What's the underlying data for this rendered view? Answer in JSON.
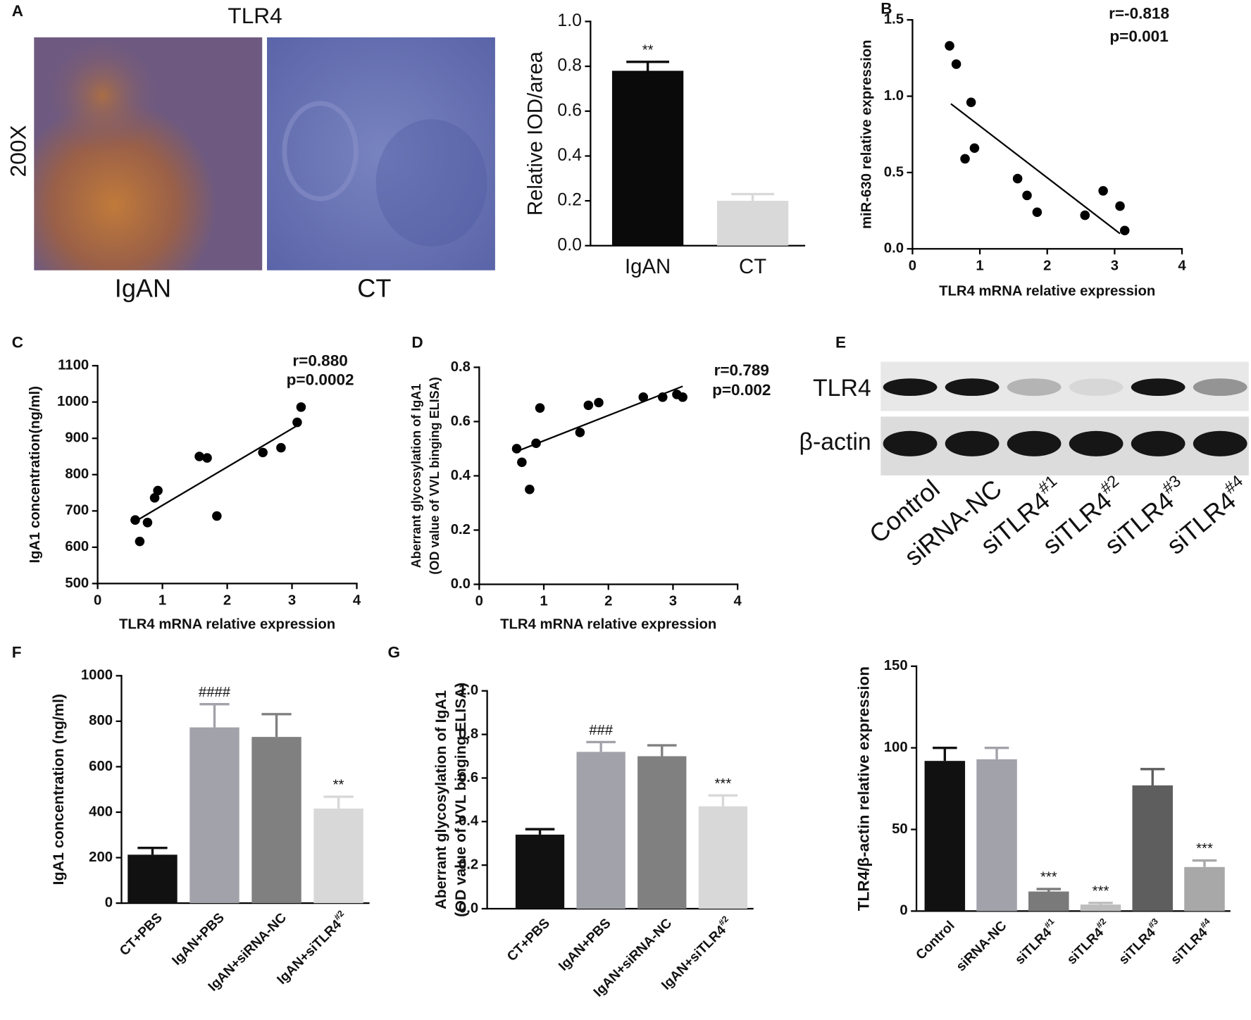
{
  "histology": {
    "panel": "A",
    "title": "TLR4",
    "magnification": "200X",
    "labels": [
      "IgAN",
      "CT"
    ]
  },
  "western_blot": {
    "panel": "E",
    "rows": [
      "TLR4",
      "β-actin"
    ],
    "lanes": [
      "Control",
      "siRNA-NC",
      {
        "text": "siTLR4",
        "sup": "#1"
      },
      {
        "text": "siTLR4",
        "sup": "#2"
      },
      {
        "text": "siTLR4",
        "sup": "#3"
      },
      {
        "text": "siTLR4",
        "sup": "#4"
      }
    ]
  },
  "chart_data": [
    {
      "type": "bar",
      "ylabel": "Relative IOD/area",
      "categories": [
        "IgAN",
        "CT"
      ],
      "values": [
        0.78,
        0.2
      ],
      "errors": [
        0.04,
        0.03
      ],
      "colors": [
        "#0a0a0a",
        "#d9d9d9"
      ],
      "bar_annotations": [
        "**",
        null
      ],
      "ylim": [
        0,
        1
      ],
      "yticks": [
        {
          "value": 0,
          "label": "0.0"
        },
        {
          "value": 0.2,
          "label": "0.2"
        },
        {
          "value": 0.4,
          "label": "0.4"
        },
        {
          "value": 0.6,
          "label": "0.6"
        },
        {
          "value": 0.8,
          "label": "0.8"
        },
        {
          "value": 1,
          "label": "1.0"
        }
      ]
    },
    {
      "type": "scatter",
      "panel": "B",
      "xlabel": "TLR4 mRNA relative expression",
      "ylabel": "miR-630 relative expression",
      "annotations": [
        "r=-0.818",
        "p=0.001"
      ],
      "color": "#000000",
      "x": [
        0.55,
        0.65,
        0.87,
        0.92,
        0.78,
        1.56,
        1.7,
        1.85,
        2.56,
        2.83,
        3.08,
        3.15
      ],
      "y": [
        1.33,
        1.21,
        0.96,
        0.66,
        0.59,
        0.46,
        0.35,
        0.24,
        0.22,
        0.38,
        0.28,
        0.12
      ],
      "fit": {
        "x": [
          0.57,
          3.08
        ],
        "y": [
          0.95,
          0.1
        ]
      },
      "xlim": [
        0,
        4
      ],
      "xticks": [
        0,
        1,
        2,
        3,
        4
      ],
      "ylim": [
        0,
        1.5
      ],
      "yticks": [
        {
          "value": 0,
          "label": "0.0"
        },
        {
          "value": 0.5,
          "label": "0.5"
        },
        {
          "value": 1,
          "label": "1.0"
        },
        {
          "value": 1.5,
          "label": "1.5"
        }
      ]
    },
    {
      "type": "scatter",
      "panel": "C",
      "xlabel": "TLR4 mRNA relative expression",
      "ylabel": "IgA1 concentration(ng/ml)",
      "annotations": [
        "r=0.880",
        "p=0.0002"
      ],
      "color": "#000000",
      "x": [
        0.58,
        0.65,
        0.77,
        0.88,
        0.93,
        1.57,
        1.69,
        1.84,
        2.55,
        2.83,
        3.08,
        3.14
      ],
      "y": [
        675,
        616,
        668,
        736,
        756,
        850,
        846,
        686,
        861,
        874,
        944,
        986
      ],
      "fit": {
        "x": [
          0.58,
          3.08
        ],
        "y": [
          671,
          935
        ]
      },
      "xlim": [
        0,
        4
      ],
      "xticks": [
        0,
        1,
        2,
        3,
        4
      ],
      "ylim": [
        500,
        1100
      ],
      "yticks": [
        500,
        600,
        700,
        800,
        900,
        1000,
        1100
      ]
    },
    {
      "type": "scatter",
      "panel": "D",
      "xlabel": "TLR4 mRNA relative expression",
      "ylabel": [
        "Aberrant glycosylation of IgA1",
        "(OD value of VVL binging ELISA)"
      ],
      "annotations": [
        "r=0.789",
        "p=0.002"
      ],
      "color": "#000000",
      "x": [
        0.58,
        0.66,
        0.78,
        0.88,
        0.94,
        1.56,
        1.69,
        1.85,
        2.54,
        2.84,
        3.06,
        3.15
      ],
      "y": [
        0.5,
        0.45,
        0.35,
        0.52,
        0.65,
        0.56,
        0.66,
        0.67,
        0.69,
        0.69,
        0.7,
        0.69
      ],
      "fit": {
        "x": [
          0.58,
          3.15
        ],
        "y": [
          0.49,
          0.73
        ]
      },
      "xlim": [
        0,
        4
      ],
      "xticks": [
        0,
        1,
        2,
        3,
        4
      ],
      "ylim": [
        0,
        0.8
      ],
      "yticks": [
        {
          "value": 0,
          "label": "0.0"
        },
        {
          "value": 0.2,
          "label": "0.2"
        },
        {
          "value": 0.4,
          "label": "0.4"
        },
        {
          "value": 0.6,
          "label": "0.6"
        },
        {
          "value": 0.8,
          "label": "0.8"
        }
      ]
    },
    {
      "type": "bar",
      "panel": "F",
      "ylabel": "IgA1 concentration (ng/ml)",
      "categories": [
        "CT+PBS",
        "IgAN+PBS",
        "IgAN+siRNA-NC",
        {
          "text": "IgAN+siTLR4",
          "sup": "#2"
        }
      ],
      "values": [
        213,
        773,
        731,
        416
      ],
      "errors": [
        30,
        102,
        100,
        52
      ],
      "colors": [
        "#111111",
        "#a2a2aa",
        "#808080",
        "#d8d8d8"
      ],
      "bar_annotations": [
        null,
        "####",
        null,
        "**"
      ],
      "ylim": [
        0,
        1000
      ],
      "yticks": [
        0,
        200,
        400,
        600,
        800,
        1000
      ]
    },
    {
      "type": "bar",
      "panel": "G",
      "ylabel": [
        "Aberrant glycosylation of IgA1",
        "(OD value of VVL binging ELISA)"
      ],
      "categories": [
        "CT+PBS",
        "IgAN+PBS",
        "IgAN+siRNA-NC",
        {
          "text": "IgAN+siTLR4",
          "sup": "#2"
        }
      ],
      "values": [
        0.34,
        0.72,
        0.7,
        0.47
      ],
      "errors": [
        0.025,
        0.045,
        0.05,
        0.05
      ],
      "colors": [
        "#111111",
        "#a2a2aa",
        "#808080",
        "#d8d8d8"
      ],
      "bar_annotations": [
        null,
        "###",
        null,
        "***"
      ],
      "ylim": [
        0,
        1
      ],
      "yticks": [
        {
          "value": 0,
          "label": "0.0"
        },
        {
          "value": 0.2,
          "label": "0.2"
        },
        {
          "value": 0.4,
          "label": "0.4"
        },
        {
          "value": 0.6,
          "label": "0.6"
        },
        {
          "value": 0.8,
          "label": "0.8"
        },
        {
          "value": 1,
          "label": "1.0"
        }
      ]
    },
    {
      "type": "bar",
      "ylabel": "TLR4/β-actin relative expression",
      "categories": [
        "Control",
        "siRNA-NC",
        {
          "text": "siTLR4",
          "sup": "#1"
        },
        {
          "text": "siTLR4",
          "sup": "#2"
        },
        {
          "text": "siTLR4",
          "sup": "#3"
        },
        {
          "text": "siTLR4",
          "sup": "#4"
        }
      ],
      "values": [
        92,
        93,
        12,
        4,
        77,
        27
      ],
      "errors": [
        8,
        7,
        1.5,
        1,
        10,
        4
      ],
      "colors": [
        "#111111",
        "#a2a2aa",
        "#7a7a7a",
        "#bdbdbd",
        "#5e5e5e",
        "#a8a8a8"
      ],
      "bar_annotations": [
        null,
        null,
        "***",
        "***",
        null,
        "***"
      ],
      "ylim": [
        0,
        150
      ],
      "yticks": [
        0,
        50,
        100,
        150
      ]
    }
  ]
}
